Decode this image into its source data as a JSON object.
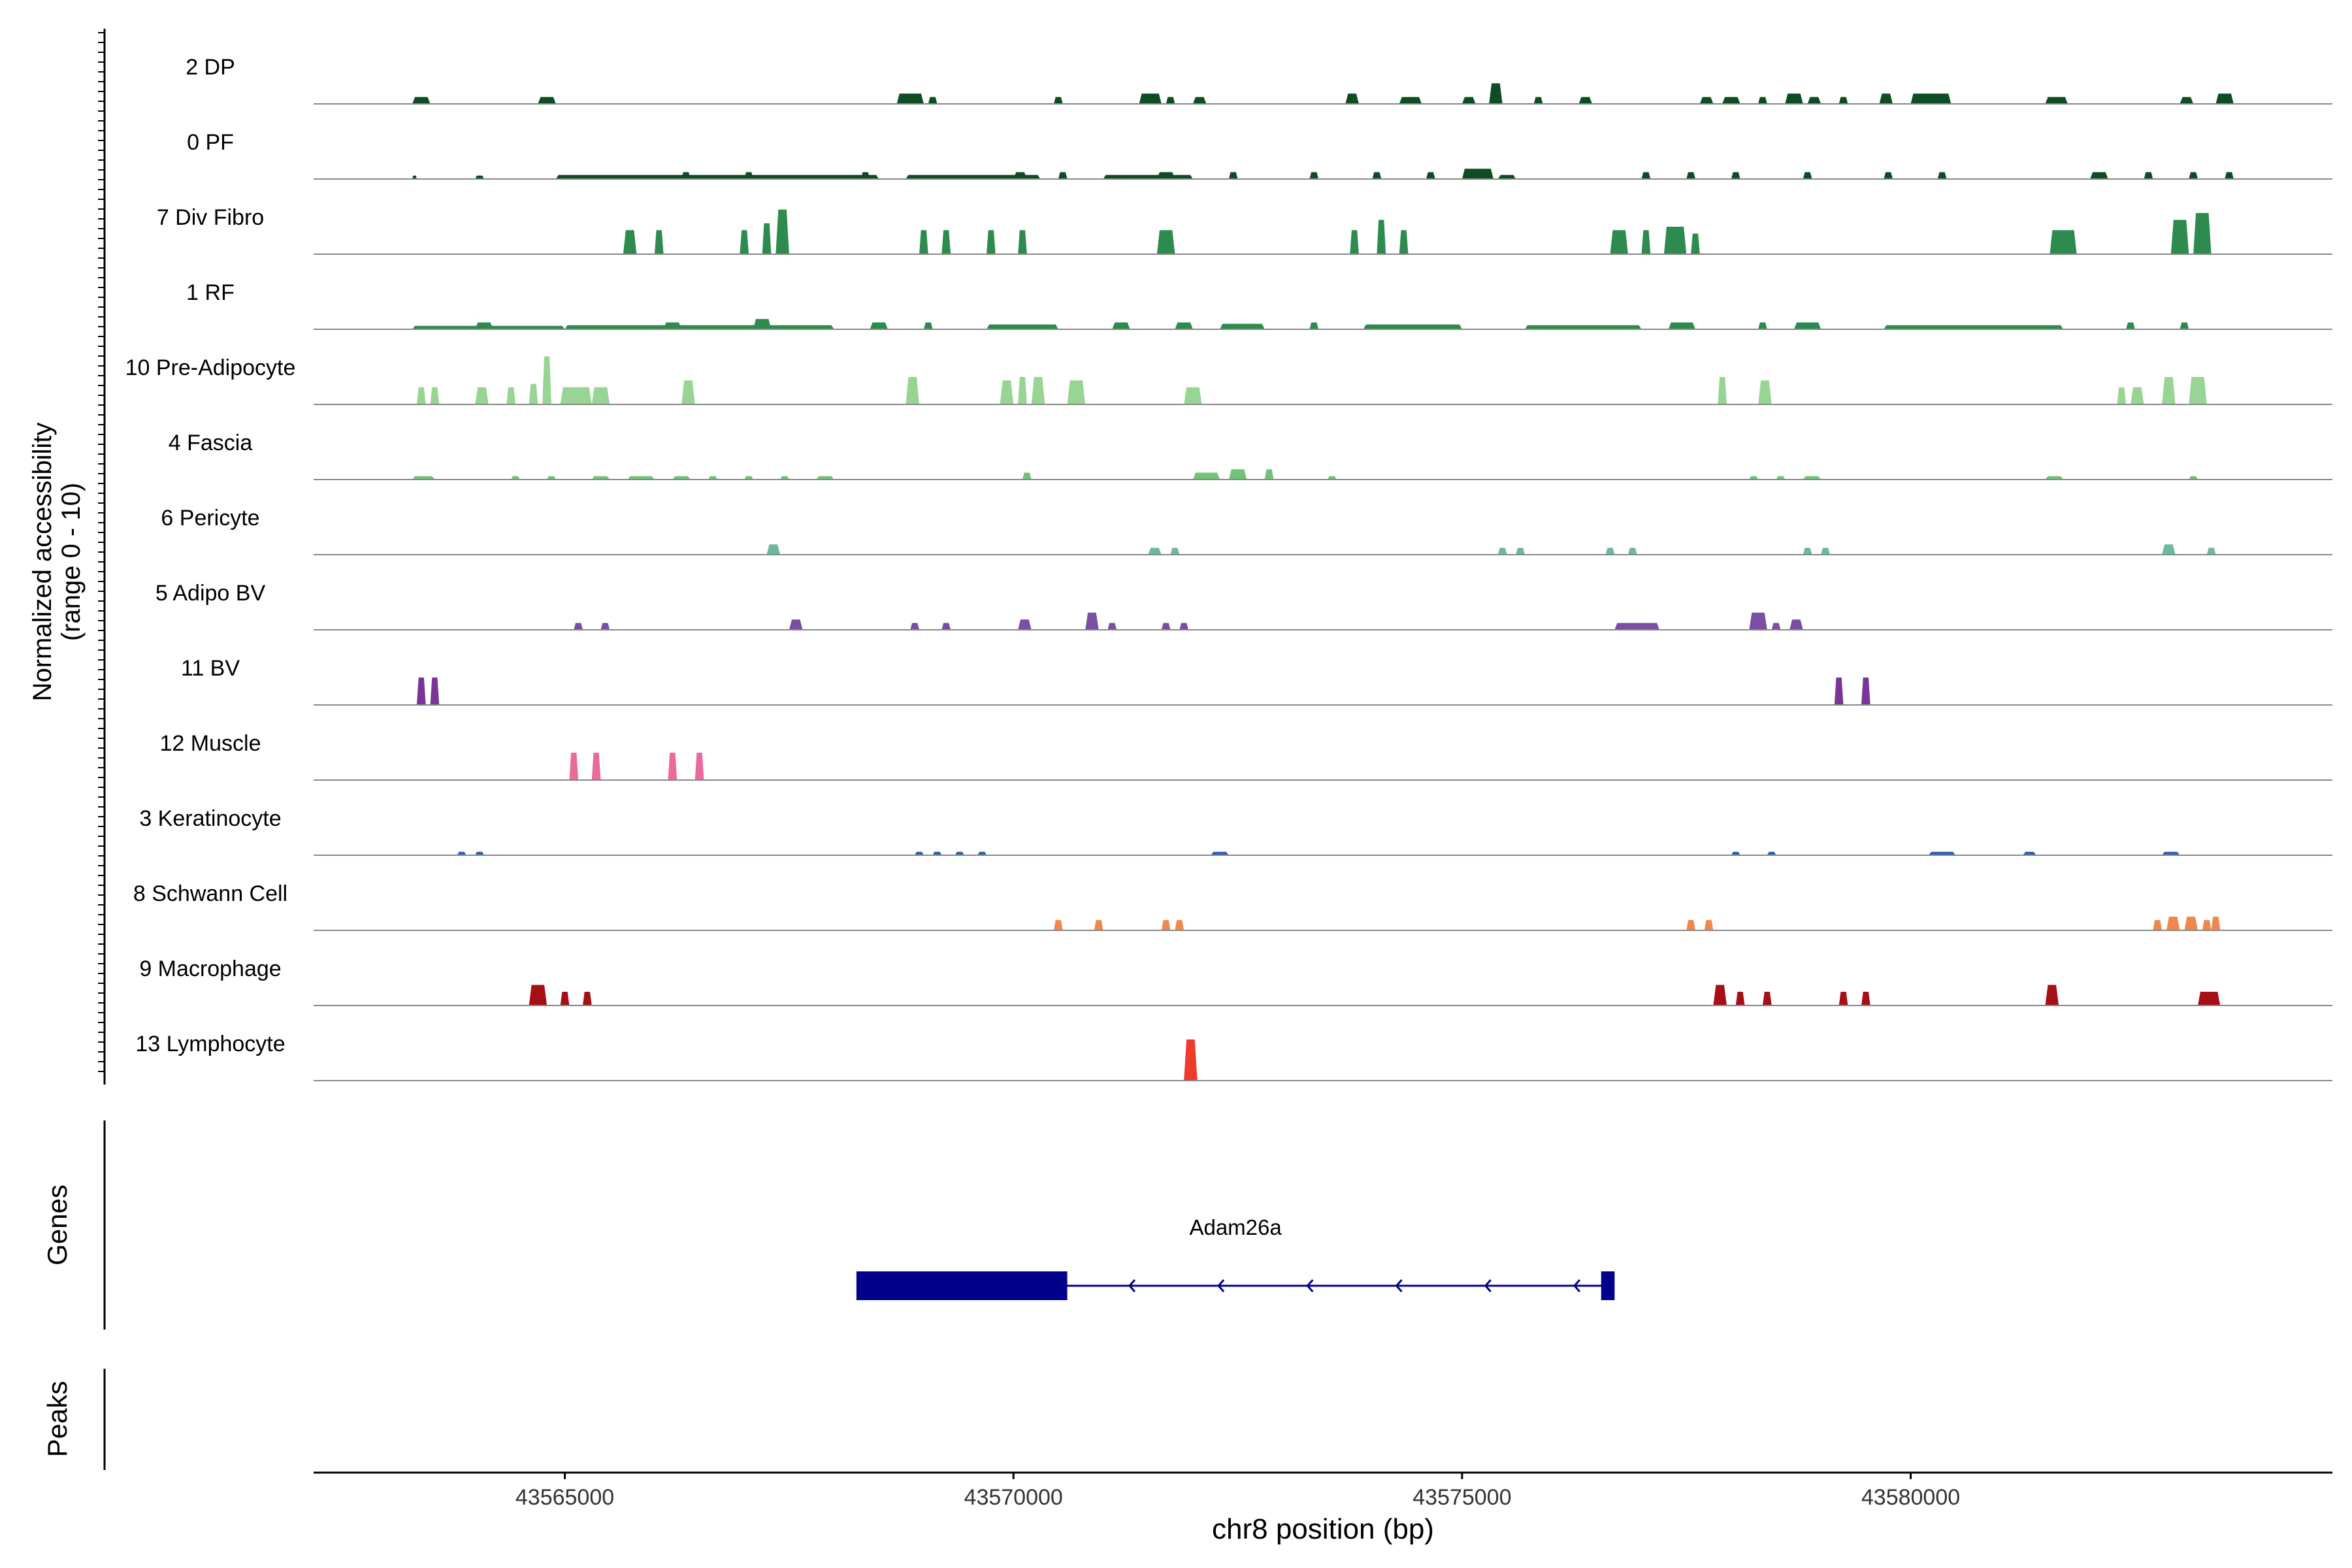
{
  "chart_data": {
    "type": "area",
    "ylabel_line1": "Normalized accessibility",
    "ylabel_line2": "(range 0 - 10)",
    "ylim": [
      0,
      10
    ],
    "genes_label": "Genes",
    "peaks_label": "Peaks",
    "xlabel": "chr8 position (bp)",
    "xlim": [
      43562200,
      43584700
    ],
    "xticks": [
      43565000,
      43570000,
      43575000,
      43580000
    ],
    "xtick_labels": [
      "43565000",
      "43570000",
      "43575000",
      "43580000"
    ],
    "tracks": [
      {
        "name": "2 DP",
        "color": "#0d4d23",
        "peaks": [
          [
            43563300,
            43563500,
            1
          ],
          [
            43564700,
            43564900,
            1
          ],
          [
            43568700,
            43569000,
            1.5
          ],
          [
            43569050,
            43569150,
            1
          ],
          [
            43570450,
            43570550,
            1
          ],
          [
            43571400,
            43571650,
            1.5
          ],
          [
            43571700,
            43571800,
            1
          ],
          [
            43572000,
            43572150,
            1
          ],
          [
            43573700,
            43573850,
            1.5
          ],
          [
            43574300,
            43574550,
            1
          ],
          [
            43575000,
            43575150,
            1
          ],
          [
            43575300,
            43575450,
            3
          ],
          [
            43575800,
            43575900,
            1
          ],
          [
            43576300,
            43576450,
            1
          ],
          [
            43577650,
            43577800,
            1
          ],
          [
            43577900,
            43578100,
            1
          ],
          [
            43578300,
            43578400,
            1
          ],
          [
            43578600,
            43578800,
            1.5
          ],
          [
            43578850,
            43579000,
            1
          ],
          [
            43579200,
            43579300,
            1
          ],
          [
            43579650,
            43579800,
            1.5
          ],
          [
            43580000,
            43580450,
            1.5
          ],
          [
            43581500,
            43581750,
            1
          ],
          [
            43583000,
            43583150,
            1
          ],
          [
            43583400,
            43583600,
            1.5
          ]
        ]
      },
      {
        "name": "0 PF",
        "color": "#0d4d23",
        "peaks": [
          [
            43563300,
            43563350,
            0.5
          ],
          [
            43564000,
            43564100,
            0.5
          ],
          [
            43564900,
            43568500,
            0.6
          ],
          [
            43566300,
            43566400,
            1
          ],
          [
            43567000,
            43567100,
            1
          ],
          [
            43568300,
            43568400,
            1
          ],
          [
            43568800,
            43570300,
            0.6
          ],
          [
            43570000,
            43570150,
            1
          ],
          [
            43570500,
            43570600,
            1
          ],
          [
            43571000,
            43572000,
            0.6
          ],
          [
            43571600,
            43571800,
            1
          ],
          [
            43572400,
            43572500,
            1
          ],
          [
            43573300,
            43573400,
            1
          ],
          [
            43574000,
            43574100,
            1
          ],
          [
            43574600,
            43574700,
            1
          ],
          [
            43575000,
            43575350,
            1.5
          ],
          [
            43575400,
            43575600,
            0.6
          ],
          [
            43577000,
            43577100,
            1
          ],
          [
            43577500,
            43577600,
            1
          ],
          [
            43578000,
            43578100,
            1
          ],
          [
            43578800,
            43578900,
            1
          ],
          [
            43579700,
            43579800,
            1
          ],
          [
            43580300,
            43580400,
            1
          ],
          [
            43582000,
            43582200,
            1
          ],
          [
            43582600,
            43582700,
            1
          ],
          [
            43583100,
            43583200,
            1
          ],
          [
            43583500,
            43583600,
            1
          ]
        ]
      },
      {
        "name": "7 Div Fibro",
        "color": "#2e8b4e",
        "peaks": [
          [
            43565650,
            43565800,
            3.5
          ],
          [
            43566000,
            43566100,
            3.5
          ],
          [
            43566950,
            43567050,
            3.5
          ],
          [
            43567200,
            43567300,
            4.5
          ],
          [
            43567350,
            43567500,
            6.5
          ],
          [
            43568950,
            43569050,
            3.5
          ],
          [
            43569200,
            43569300,
            3.5
          ],
          [
            43569700,
            43569800,
            3.5
          ],
          [
            43570050,
            43570150,
            3.5
          ],
          [
            43571600,
            43571800,
            3.5
          ],
          [
            43573750,
            43573850,
            3.5
          ],
          [
            43574050,
            43574150,
            5
          ],
          [
            43574300,
            43574400,
            3.5
          ],
          [
            43576650,
            43576850,
            3.5
          ],
          [
            43577000,
            43577100,
            3.5
          ],
          [
            43577250,
            43577500,
            4
          ],
          [
            43577550,
            43577650,
            3
          ],
          [
            43581550,
            43581850,
            3.5
          ],
          [
            43582900,
            43583100,
            5
          ],
          [
            43583150,
            43583350,
            6
          ]
        ]
      },
      {
        "name": "1 RF",
        "color": "#2e8b4e",
        "peaks": [
          [
            43563300,
            43565000,
            0.5
          ],
          [
            43564000,
            43564200,
            1
          ],
          [
            43565000,
            43568000,
            0.6
          ],
          [
            43566100,
            43566300,
            1
          ],
          [
            43567100,
            43567300,
            1.5
          ],
          [
            43568400,
            43568600,
            1
          ],
          [
            43569000,
            43569100,
            1
          ],
          [
            43569700,
            43570500,
            0.7
          ],
          [
            43571100,
            43571300,
            1
          ],
          [
            43571800,
            43572000,
            1
          ],
          [
            43572300,
            43572800,
            0.8
          ],
          [
            43573300,
            43573400,
            1
          ],
          [
            43573900,
            43575000,
            0.7
          ],
          [
            43575700,
            43577000,
            0.6
          ],
          [
            43577300,
            43577600,
            1
          ],
          [
            43578300,
            43578400,
            1
          ],
          [
            43578700,
            43579000,
            1
          ],
          [
            43579700,
            43581700,
            0.6
          ],
          [
            43582400,
            43582500,
            1
          ],
          [
            43583000,
            43583100,
            1
          ]
        ]
      },
      {
        "name": "10 Pre-Adipocyte",
        "color": "#98d594",
        "peaks": [
          [
            43563350,
            43563450,
            2.5
          ],
          [
            43563500,
            43563600,
            2.5
          ],
          [
            43564000,
            43564150,
            2.5
          ],
          [
            43564350,
            43564450,
            2.5
          ],
          [
            43564600,
            43564700,
            3
          ],
          [
            43564750,
            43564850,
            7
          ],
          [
            43564950,
            43565300,
            2.5
          ],
          [
            43565300,
            43565500,
            2.5
          ],
          [
            43566300,
            43566450,
            3.5
          ],
          [
            43568800,
            43568950,
            4
          ],
          [
            43569850,
            43570000,
            3.5
          ],
          [
            43570050,
            43570150,
            4
          ],
          [
            43570200,
            43570350,
            4
          ],
          [
            43570600,
            43570800,
            3.5
          ],
          [
            43571900,
            43572100,
            2.5
          ],
          [
            43577850,
            43577950,
            4
          ],
          [
            43578300,
            43578450,
            3.5
          ],
          [
            43582300,
            43582400,
            2.5
          ],
          [
            43582450,
            43582600,
            2.5
          ],
          [
            43582800,
            43582950,
            4
          ],
          [
            43583100,
            43583300,
            4
          ]
        ]
      },
      {
        "name": "4 Fascia",
        "color": "#72c27a",
        "peaks": [
          [
            43563300,
            43563550,
            0.5
          ],
          [
            43564400,
            43564500,
            0.5
          ],
          [
            43564800,
            43564900,
            0.5
          ],
          [
            43565300,
            43565500,
            0.5
          ],
          [
            43565700,
            43566000,
            0.5
          ],
          [
            43566200,
            43566400,
            0.5
          ],
          [
            43566600,
            43566700,
            0.5
          ],
          [
            43567000,
            43567100,
            0.5
          ],
          [
            43567400,
            43567500,
            0.5
          ],
          [
            43567800,
            43568000,
            0.5
          ],
          [
            43570100,
            43570200,
            1
          ],
          [
            43572000,
            43572300,
            1
          ],
          [
            43572400,
            43572600,
            1.5
          ],
          [
            43572800,
            43572900,
            1.5
          ],
          [
            43573500,
            43573600,
            0.5
          ],
          [
            43578200,
            43578300,
            0.5
          ],
          [
            43578500,
            43578600,
            0.5
          ],
          [
            43578800,
            43579000,
            0.5
          ],
          [
            43581500,
            43581700,
            0.5
          ],
          [
            43583100,
            43583200,
            0.5
          ]
        ]
      },
      {
        "name": "6 Pericyte",
        "color": "#6cb8a2",
        "peaks": [
          [
            43567250,
            43567400,
            1.5
          ],
          [
            43571500,
            43571650,
            1
          ],
          [
            43571750,
            43571850,
            1
          ],
          [
            43575400,
            43575500,
            1
          ],
          [
            43575600,
            43575700,
            1
          ],
          [
            43576600,
            43576700,
            1
          ],
          [
            43576850,
            43576950,
            1
          ],
          [
            43578800,
            43578900,
            1
          ],
          [
            43579000,
            43579100,
            1
          ],
          [
            43582800,
            43582950,
            1.5
          ],
          [
            43583300,
            43583400,
            1
          ]
        ]
      },
      {
        "name": "5 Adipo BV",
        "color": "#7a4ea3",
        "peaks": [
          [
            43565100,
            43565200,
            1
          ],
          [
            43565400,
            43565500,
            1
          ],
          [
            43567500,
            43567650,
            1.5
          ],
          [
            43568850,
            43568950,
            1
          ],
          [
            43569200,
            43569300,
            1
          ],
          [
            43570050,
            43570200,
            1.5
          ],
          [
            43570800,
            43570950,
            2.5
          ],
          [
            43571050,
            43571150,
            1
          ],
          [
            43571650,
            43571750,
            1
          ],
          [
            43571850,
            43571950,
            1
          ],
          [
            43576700,
            43577200,
            1
          ],
          [
            43578200,
            43578400,
            2.5
          ],
          [
            43578450,
            43578550,
            1
          ],
          [
            43578650,
            43578800,
            1.5
          ]
        ]
      },
      {
        "name": "11 BV",
        "color": "#7b3596",
        "peaks": [
          [
            43563350,
            43563450,
            4
          ],
          [
            43563500,
            43563600,
            4
          ],
          [
            43579150,
            43579250,
            4
          ],
          [
            43579450,
            43579550,
            4
          ]
        ]
      },
      {
        "name": "12 Muscle",
        "color": "#ea6a9b",
        "peaks": [
          [
            43565050,
            43565150,
            4
          ],
          [
            43565300,
            43565400,
            4
          ],
          [
            43566150,
            43566250,
            4
          ],
          [
            43566450,
            43566550,
            4
          ]
        ]
      },
      {
        "name": "3 Keratinocyte",
        "color": "#2f5fb5",
        "peaks": [
          [
            43563800,
            43563900,
            0.5
          ],
          [
            43564000,
            43564100,
            0.5
          ],
          [
            43568900,
            43569000,
            0.5
          ],
          [
            43569100,
            43569200,
            0.5
          ],
          [
            43569350,
            43569450,
            0.5
          ],
          [
            43569600,
            43569700,
            0.5
          ],
          [
            43572200,
            43572400,
            0.5
          ],
          [
            43578000,
            43578100,
            0.5
          ],
          [
            43578400,
            43578500,
            0.5
          ],
          [
            43580200,
            43580500,
            0.5
          ],
          [
            43581250,
            43581400,
            0.5
          ],
          [
            43582800,
            43583000,
            0.5
          ]
        ]
      },
      {
        "name": "8 Schwann Cell",
        "color": "#f0874c",
        "peaks": [
          [
            43570450,
            43570550,
            1.5
          ],
          [
            43570900,
            43571000,
            1.5
          ],
          [
            43571650,
            43571750,
            1.5
          ],
          [
            43571800,
            43571900,
            1.5
          ],
          [
            43577500,
            43577600,
            1.5
          ],
          [
            43577700,
            43577800,
            1.5
          ],
          [
            43582700,
            43582800,
            1.5
          ],
          [
            43582850,
            43583000,
            2
          ],
          [
            43583050,
            43583200,
            2
          ],
          [
            43583250,
            43583350,
            1.5
          ],
          [
            43583350,
            43583450,
            2
          ]
        ]
      },
      {
        "name": "9 Macrophage",
        "color": "#a50f15",
        "peaks": [
          [
            43564600,
            43564800,
            3
          ],
          [
            43564950,
            43565050,
            2
          ],
          [
            43565200,
            43565300,
            2
          ],
          [
            43577800,
            43577950,
            3
          ],
          [
            43578050,
            43578150,
            2
          ],
          [
            43578350,
            43578450,
            2
          ],
          [
            43579200,
            43579300,
            2
          ],
          [
            43579450,
            43579550,
            2
          ],
          [
            43581500,
            43581650,
            3
          ],
          [
            43583200,
            43583450,
            2
          ]
        ]
      },
      {
        "name": "13 Lymphocyte",
        "color": "#ef3b2c",
        "peaks": [
          [
            43571900,
            43572050,
            6
          ]
        ]
      }
    ],
    "gene": {
      "name": "Adam26a",
      "color": "#00008b",
      "start": 43568250,
      "end": 43576700,
      "strand": "-",
      "exons": [
        [
          43568250,
          43570600
        ],
        [
          43576550,
          43576700
        ]
      ]
    }
  }
}
